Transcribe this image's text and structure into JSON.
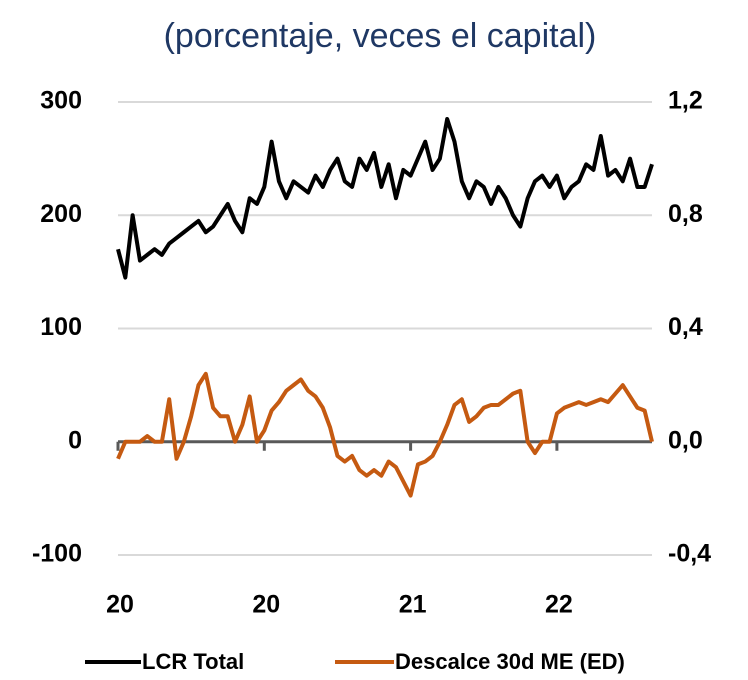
{
  "chart_data": {
    "type": "line",
    "title": "(porcentaje, veces el capital)",
    "categories": [
      "20",
      null,
      null,
      null,
      null,
      null,
      null,
      null,
      null,
      null,
      null,
      null,
      null,
      null,
      null,
      null,
      null,
      null,
      null,
      null,
      "20",
      null,
      null,
      null,
      null,
      null,
      null,
      null,
      null,
      null,
      null,
      null,
      null,
      null,
      null,
      null,
      null,
      null,
      null,
      null,
      "21",
      null,
      null,
      null,
      null,
      null,
      null,
      null,
      null,
      null,
      null,
      null,
      null,
      null,
      null,
      null,
      null,
      null,
      null,
      null,
      "22",
      null,
      null,
      null,
      null,
      null,
      null,
      null,
      null,
      null,
      null,
      null,
      null,
      null
    ],
    "series": [
      {
        "name": "LCR Total",
        "color": "#000000",
        "axis": "y",
        "values": [
          170,
          145,
          200,
          160,
          165,
          170,
          165,
          175,
          180,
          185,
          190,
          195,
          185,
          190,
          200,
          210,
          195,
          185,
          215,
          210,
          225,
          265,
          230,
          215,
          230,
          225,
          220,
          235,
          225,
          240,
          250,
          230,
          225,
          250,
          240,
          255,
          225,
          245,
          215,
          240,
          235,
          250,
          265,
          240,
          250,
          285,
          265,
          230,
          215,
          230,
          225,
          210,
          225,
          215,
          200,
          190,
          215,
          230,
          235,
          225,
          235,
          215,
          225,
          230,
          245,
          240,
          270,
          235,
          240,
          230,
          250,
          225,
          225,
          245
        ]
      },
      {
        "name": "Descalce 30d ME (ED)",
        "color": "#c55a11",
        "axis": "y2",
        "values": [
          -0.06,
          0.0,
          0.0,
          0.0,
          0.02,
          0.0,
          0.0,
          0.15,
          -0.06,
          0.0,
          0.09,
          0.2,
          0.24,
          0.12,
          0.09,
          0.09,
          0.0,
          0.06,
          0.16,
          0.0,
          0.04,
          0.11,
          0.14,
          0.18,
          0.2,
          0.22,
          0.18,
          0.16,
          0.12,
          0.05,
          -0.05,
          -0.07,
          -0.05,
          -0.1,
          -0.12,
          -0.1,
          -0.12,
          -0.07,
          -0.09,
          -0.14,
          -0.19,
          -0.08,
          -0.07,
          -0.05,
          0.0,
          0.06,
          0.13,
          0.15,
          0.07,
          0.09,
          0.12,
          0.13,
          0.13,
          0.15,
          0.17,
          0.18,
          0.0,
          -0.04,
          0.0,
          0.0,
          0.1,
          0.12,
          0.13,
          0.14,
          0.13,
          0.14,
          0.15,
          0.14,
          0.17,
          0.2,
          0.16,
          0.12,
          0.11,
          0.0
        ]
      }
    ],
    "ylim": [
      -100,
      300
    ],
    "yticks": [
      300,
      200,
      100,
      0,
      -100
    ],
    "y2lim": [
      -0.4,
      1.2
    ],
    "y2ticks": [
      {
        "value": 1.2,
        "label": "1,2"
      },
      {
        "value": 0.8,
        "label": "0,8"
      },
      {
        "value": 0.4,
        "label": "0,4"
      },
      {
        "value": 0.0,
        "label": "0,0"
      },
      {
        "value": -0.4,
        "label": "-0,4"
      }
    ],
    "grid": true,
    "legend": "bottom"
  }
}
